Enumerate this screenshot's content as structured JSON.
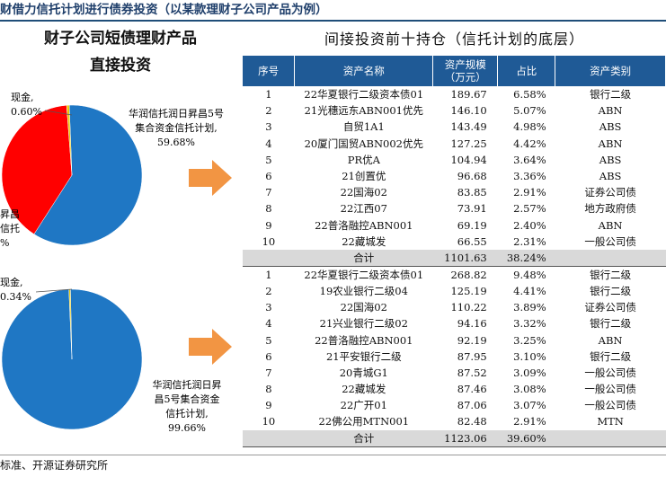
{
  "header": {
    "title": "财借力信托计划进行债券投资（以某款理财子公司产品为例）"
  },
  "left_panel": {
    "title_line1": "财子公司短债理财产品",
    "title_line2": "直接投资"
  },
  "right_panel": {
    "title": "间接投资前十持仓（信托计划的底层）"
  },
  "table": {
    "headers": [
      "序号",
      "资产名称",
      "资产规模\n（万元）",
      "占比",
      "资产类别"
    ],
    "header_scale_line1": "资产规模",
    "header_scale_line2": "（万元）",
    "group1": [
      {
        "no": "1",
        "name": "22华夏银行二级资本债01",
        "scale": "189.67",
        "pct": "6.58%",
        "type": "银行二级"
      },
      {
        "no": "2",
        "name": "21光穗远东ABN001优先",
        "scale": "146.10",
        "pct": "5.07%",
        "type": "ABN"
      },
      {
        "no": "3",
        "name": "自贸1A1",
        "scale": "143.49",
        "pct": "4.98%",
        "type": "ABS"
      },
      {
        "no": "4",
        "name": "20厦门国贸ABN002优先",
        "scale": "127.25",
        "pct": "4.42%",
        "type": "ABN"
      },
      {
        "no": "5",
        "name": "PR优A",
        "scale": "104.94",
        "pct": "3.64%",
        "type": "ABS"
      },
      {
        "no": "6",
        "name": "21创置优",
        "scale": "96.68",
        "pct": "3.36%",
        "type": "ABS"
      },
      {
        "no": "7",
        "name": "22国海02",
        "scale": "83.85",
        "pct": "2.91%",
        "type": "证券公司债"
      },
      {
        "no": "8",
        "name": "22江西07",
        "scale": "73.91",
        "pct": "2.57%",
        "type": "地方政府债"
      },
      {
        "no": "9",
        "name": "22普洛融控ABN001",
        "scale": "69.19",
        "pct": "2.40%",
        "type": "ABN"
      },
      {
        "no": "10",
        "name": "22藏城发",
        "scale": "66.55",
        "pct": "2.31%",
        "type": "一般公司债"
      }
    ],
    "group1_total": {
      "label": "合计",
      "scale": "1101.63",
      "pct": "38.24%"
    },
    "group2": [
      {
        "no": "1",
        "name": "22华夏银行二级资本债01",
        "scale": "268.82",
        "pct": "9.48%",
        "type": "银行二级"
      },
      {
        "no": "2",
        "name": "19农业银行二级04",
        "scale": "125.19",
        "pct": "4.41%",
        "type": "银行二级"
      },
      {
        "no": "3",
        "name": "22国海02",
        "scale": "110.22",
        "pct": "3.89%",
        "type": "证券公司债"
      },
      {
        "no": "4",
        "name": "21兴业银行二级02",
        "scale": "94.16",
        "pct": "3.32%",
        "type": "银行二级"
      },
      {
        "no": "5",
        "name": "22普洛融控ABN001",
        "scale": "92.19",
        "pct": "3.25%",
        "type": "ABN"
      },
      {
        "no": "6",
        "name": "21平安银行二级",
        "scale": "87.95",
        "pct": "3.10%",
        "type": "银行二级"
      },
      {
        "no": "7",
        "name": "20青城G1",
        "scale": "87.52",
        "pct": "3.09%",
        "type": "一般公司债"
      },
      {
        "no": "8",
        "name": "22藏城发",
        "scale": "87.46",
        "pct": "3.08%",
        "type": "一般公司债"
      },
      {
        "no": "9",
        "name": "22广开01",
        "scale": "87.06",
        "pct": "3.07%",
        "type": "一般公司债"
      },
      {
        "no": "10",
        "name": "22佛公用MTN001",
        "scale": "82.48",
        "pct": "2.91%",
        "type": "MTN"
      }
    ],
    "group2_total": {
      "label": "合计",
      "scale": "1123.06",
      "pct": "39.60%"
    }
  },
  "chart_data": [
    {
      "type": "pie",
      "title": "",
      "slices": [
        {
          "label_line1": "华润信托润日昇昌5号",
          "label_line2": "集合资金信托计划,",
          "label_line3": "59.68%",
          "value": 59.68,
          "color": "#1f77c4"
        },
        {
          "label_line1": "昇昌",
          "label_line2": "信托",
          "label_line3": "%",
          "value": 39.72,
          "color": "#ff0000"
        },
        {
          "label_line1": "现金,",
          "label_line2": "0.60%",
          "value": 0.6,
          "color": "#e8c800"
        }
      ]
    },
    {
      "type": "pie",
      "title": "",
      "slices": [
        {
          "label_line1": "华润信托润日昇",
          "label_line2": "昌5号集合资金",
          "label_line3": "信托计划,",
          "label_line4": "99.66%",
          "value": 99.66,
          "color": "#1f77c4"
        },
        {
          "label_line1": "现金,",
          "label_line2": "0.34%",
          "value": 0.34,
          "color": "#e8c800"
        }
      ]
    }
  ],
  "source": {
    "text": "标准、开源证券研究所"
  }
}
